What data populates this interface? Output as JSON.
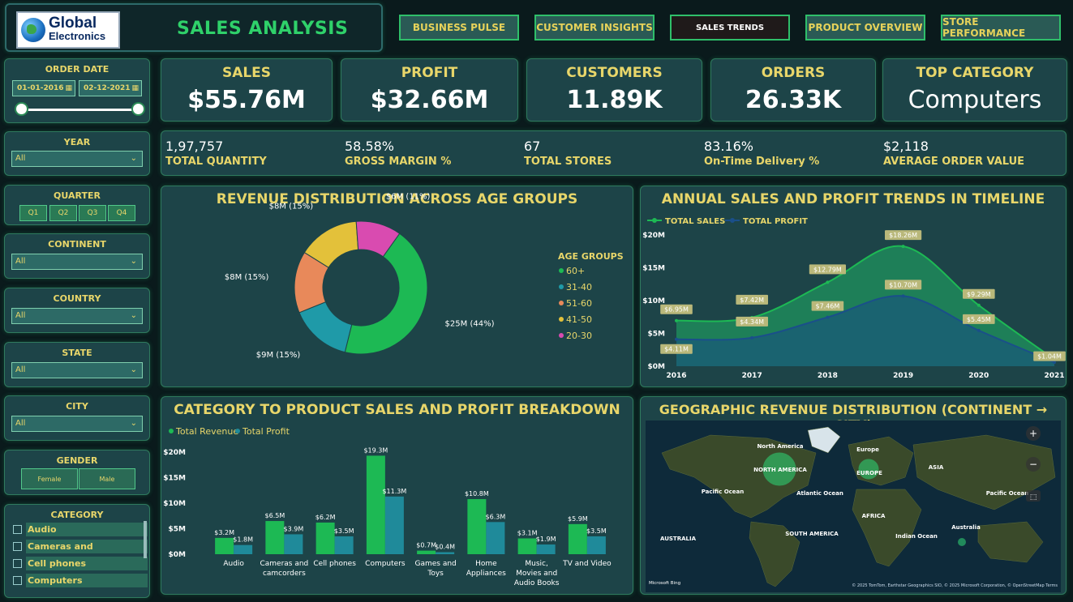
{
  "header": {
    "logo_line1": "Global",
    "logo_line2": "Electronics",
    "title": "SALES ANALYSIS"
  },
  "nav": [
    {
      "label": "BUSINESS PULSE",
      "active": false
    },
    {
      "label": "CUSTOMER INSIGHTS",
      "active": false
    },
    {
      "label": "SALES TRENDS",
      "active": true
    },
    {
      "label": "PRODUCT OVERVIEW",
      "active": false
    },
    {
      "label": "STORE PERFORMANCE",
      "active": false
    }
  ],
  "filters": {
    "order_date": {
      "label": "ORDER DATE",
      "start": "01-01-2016",
      "end": "02-12-2021"
    },
    "year": {
      "label": "YEAR",
      "value": "All"
    },
    "quarter": {
      "label": "QUARTER",
      "options": [
        "Q1",
        "Q2",
        "Q3",
        "Q4"
      ]
    },
    "continent": {
      "label": "CONTINENT",
      "value": "All"
    },
    "country": {
      "label": "COUNTRY",
      "value": "All"
    },
    "state": {
      "label": "STATE",
      "value": "All"
    },
    "city": {
      "label": "CITY",
      "value": "All"
    },
    "gender": {
      "label": "GENDER",
      "options": [
        "Female",
        "Male"
      ]
    },
    "category": {
      "label": "CATEGORY",
      "items": [
        "Audio",
        "Cameras and camcorders",
        "Cell phones",
        "Computers"
      ]
    }
  },
  "kpis": [
    {
      "label": "SALES",
      "value": "$55.76M"
    },
    {
      "label": "PROFIT",
      "value": "$32.66M"
    },
    {
      "label": "CUSTOMERS",
      "value": "11.89K"
    },
    {
      "label": "ORDERS",
      "value": "26.33K"
    },
    {
      "label": "TOP CATEGORY",
      "value": "Computers"
    }
  ],
  "stats": [
    {
      "value": "1,97,757",
      "label": "TOTAL QUANTITY"
    },
    {
      "value": "58.58%",
      "label": "GROSS MARGIN %"
    },
    {
      "value": "67",
      "label": "TOTAL STORES"
    },
    {
      "value": "83.16%",
      "label": "On-Time Delivery %"
    },
    {
      "value": "$2,118",
      "label": "AVERAGE ORDER VALUE"
    }
  ],
  "colors": {
    "green": "#1db954",
    "teal": "#1f8a9a",
    "orange": "#e8895a",
    "yellow": "#e3c13a",
    "pink": "#d94bb0",
    "profit_blue": "#1a4f8a",
    "label_gold": "#e8d66a"
  },
  "chart_data": [
    {
      "type": "pie",
      "title": "REVENUE DISTRIBUTION ACROSS AGE GROUPS",
      "legend_title": "AGE GROUPS",
      "legend_position": "right",
      "legend": [
        "60+",
        "31-40",
        "51-60",
        "41-50",
        "20-30"
      ],
      "slices": [
        {
          "name": "60+",
          "value": 25,
          "pct": 44,
          "label": "$25M (44%)",
          "color": "#1db954"
        },
        {
          "name": "31-40",
          "value": 9,
          "pct": 15,
          "label": "$9M (15%)",
          "color": "#1f9aa8"
        },
        {
          "name": "51-60",
          "value": 8,
          "pct": 15,
          "label": "$8M (15%)",
          "color": "#e8895a"
        },
        {
          "name": "41-50",
          "value": 8,
          "pct": 15,
          "label": "$8M (15%)",
          "color": "#e3c13a"
        },
        {
          "name": "20-30",
          "value": 6,
          "pct": 11,
          "label": "$6M (11%)",
          "color": "#d94bb0"
        }
      ]
    },
    {
      "type": "area",
      "title": "ANNUAL SALES AND PROFIT TRENDS IN TIMELINE",
      "x": [
        2016,
        2017,
        2018,
        2019,
        2020,
        2021
      ],
      "ylim": [
        0,
        20
      ],
      "yticks": [
        "$0M",
        "$5M",
        "$10M",
        "$15M",
        "$20M"
      ],
      "legend_position": "top-left",
      "series": [
        {
          "name": "TOTAL SALES",
          "values": [
            6.95,
            7.42,
            12.79,
            18.26,
            9.29,
            1.04
          ],
          "labels": [
            "$6.95M",
            "$7.42M",
            "$12.79M",
            "$18.26M",
            "$9.29M",
            "$1.04M"
          ],
          "color": "#1db954"
        },
        {
          "name": "TOTAL PROFIT",
          "values": [
            4.11,
            4.34,
            7.46,
            10.7,
            5.45,
            0.6
          ],
          "labels": [
            "$4.11M",
            "$4.34M",
            "$7.46M",
            "$10.70M",
            "$5.45M",
            ""
          ],
          "color": "#1a4f8a"
        }
      ]
    },
    {
      "type": "bar",
      "title": "CATEGORY TO PRODUCT SALES AND PROFIT BREAKDOWN",
      "categories": [
        "Audio",
        "Cameras and camcorders",
        "Cell phones",
        "Computers",
        "Games and Toys",
        "Home Appliances",
        "Music, Movies and Audio Books",
        "TV and Video"
      ],
      "ylim": [
        0,
        20
      ],
      "yticks": [
        "$0M",
        "$5M",
        "$10M",
        "$15M",
        "$20M"
      ],
      "legend_position": "top-left",
      "series": [
        {
          "name": "Total Revenue",
          "values": [
            3.2,
            6.5,
            6.2,
            19.3,
            0.7,
            10.8,
            3.1,
            5.9
          ],
          "labels": [
            "$3.2M",
            "$6.5M",
            "$6.2M",
            "$19.3M",
            "$0.7M",
            "$10.8M",
            "$3.1M",
            "$5.9M"
          ],
          "color": "#1db954"
        },
        {
          "name": "Total Profit",
          "values": [
            1.8,
            3.9,
            3.5,
            11.3,
            0.4,
            6.3,
            1.9,
            3.5
          ],
          "labels": [
            "$1.8M",
            "$3.9M",
            "$3.5M",
            "$11.3M",
            "$0.4M",
            "$6.3M",
            "$1.9M",
            "$3.5M"
          ],
          "color": "#1f8a9a"
        }
      ]
    }
  ],
  "map": {
    "title": "GEOGRAPHIC REVENUE DISTRIBUTION (CONTINENT → CITY)",
    "labels": [
      "North America",
      "NORTH AMERICA",
      "Europe",
      "EUROPE",
      "ASIA",
      "Pacific Ocean",
      "Atlantic Ocean",
      "AFRICA",
      "AUSTRALIA",
      "SOUTH AMERICA",
      "Indian Ocean",
      "Australia",
      "Pacific Ocean"
    ],
    "attribution": "© 2025 TomTom, Earthstar Geographics SIO, © 2025 Microsoft Corporation, © OpenStreetMap  Terms",
    "bing": "Microsoft Bing"
  }
}
